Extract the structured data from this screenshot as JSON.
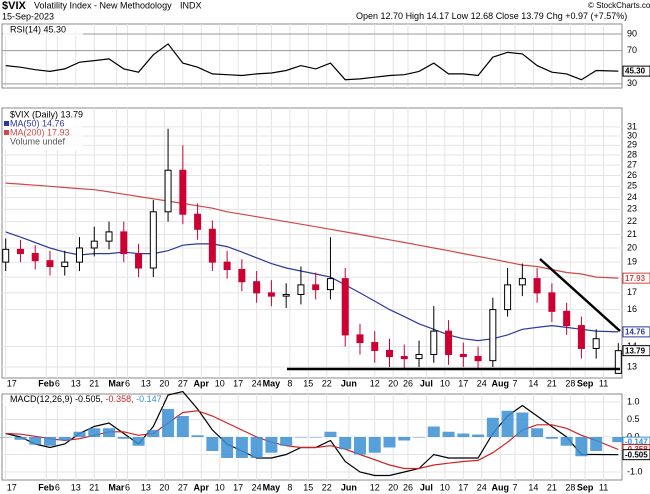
{
  "header": {
    "symbol": "$VIX",
    "name": "Volatility Index - New Methodology",
    "exchange": "INDX",
    "date": "15-Sep-2023",
    "quote": [
      "Open 12.70",
      "High 14.17",
      "Low 12.68",
      "Close 13.79",
      "Chg +0.97 (+7.57%)"
    ],
    "credit": "© StockCharts.com"
  },
  "chart_data": [
    {
      "type": "line",
      "label": "RSI(14) 45.30",
      "x": [
        0,
        4,
        8,
        12,
        16,
        20,
        24,
        28,
        32,
        36,
        40,
        44,
        48,
        52,
        56,
        60,
        64,
        68,
        72,
        76,
        80,
        84,
        88,
        92,
        96,
        100,
        104,
        108,
        112,
        116,
        120,
        124,
        128,
        132,
        136,
        140,
        144,
        148,
        152,
        156,
        160,
        166
      ],
      "xlim": [
        -1,
        167
      ],
      "series": [
        {
          "color": "#000000",
          "values": [
            52,
            50,
            47,
            45,
            48,
            56,
            58,
            60,
            48,
            44,
            65,
            78,
            55,
            50,
            42,
            41,
            40,
            42,
            43,
            46,
            52,
            48,
            55,
            35,
            36,
            38,
            40,
            41,
            45,
            55,
            42,
            42,
            40,
            62,
            68,
            66,
            52,
            44,
            42,
            35,
            46,
            45.3
          ]
        }
      ],
      "ylim": [
        25,
        102
      ],
      "yticks": [
        30,
        70,
        90
      ],
      "last_labels": [
        {
          "value": 45.3,
          "label": "45.30",
          "color": "#000000"
        }
      ]
    },
    {
      "type": "candlestick",
      "label": "$VIX (Daily) 13.79",
      "note": "Volume undef",
      "log_scale": true,
      "x": [
        0,
        4,
        8,
        12,
        16,
        20,
        24,
        28,
        32,
        36,
        40,
        44,
        48,
        52,
        56,
        60,
        64,
        68,
        72,
        76,
        80,
        84,
        88,
        92,
        96,
        100,
        104,
        108,
        112,
        116,
        120,
        124,
        128,
        132,
        136,
        140,
        144,
        148,
        152,
        156,
        160,
        166
      ],
      "xlim": [
        -1,
        167
      ],
      "open": [
        19.0,
        19.9,
        19.6,
        19.1,
        18.7,
        19.0,
        20.0,
        20.5,
        21.2,
        19.6,
        18.6,
        22.8,
        26.5,
        22.6,
        21.4,
        19.0,
        18.5,
        17.7,
        17.0,
        16.8,
        16.9,
        17.5,
        17.2,
        17.9,
        14.6,
        14.2,
        13.8,
        13.5,
        13.4,
        13.6,
        14.8,
        13.6,
        13.5,
        13.3,
        16.0,
        17.5,
        17.9,
        17.0,
        15.9,
        15.1,
        13.9,
        12.7
      ],
      "high": [
        20.7,
        20.6,
        20.2,
        19.8,
        19.8,
        20.8,
        21.6,
        22.0,
        22.0,
        20.3,
        23.8,
        30.8,
        29.0,
        23.5,
        22.1,
        19.8,
        19.2,
        18.4,
        17.8,
        17.6,
        18.7,
        18.3,
        20.8,
        18.6,
        15.2,
        14.8,
        14.4,
        14.1,
        14.3,
        16.2,
        15.4,
        14.2,
        14.0,
        16.7,
        18.6,
        18.9,
        18.6,
        17.6,
        16.4,
        15.6,
        14.9,
        14.17
      ],
      "low": [
        18.4,
        19.0,
        18.5,
        18.1,
        18.1,
        18.4,
        19.4,
        19.9,
        19.0,
        18.0,
        18.0,
        22.0,
        21.8,
        20.6,
        18.4,
        17.9,
        17.1,
        16.4,
        16.2,
        16.1,
        16.3,
        16.6,
        16.6,
        14.0,
        13.6,
        13.2,
        13.0,
        12.9,
        13.0,
        13.2,
        13.1,
        13.0,
        12.9,
        13.0,
        15.6,
        16.8,
        16.4,
        15.3,
        14.6,
        13.4,
        13.4,
        12.68
      ],
      "close": [
        19.9,
        19.6,
        19.1,
        18.7,
        19.0,
        20.0,
        20.5,
        21.2,
        19.6,
        18.6,
        22.8,
        26.5,
        22.6,
        21.4,
        19.0,
        18.5,
        17.7,
        17.0,
        16.8,
        16.9,
        17.5,
        17.2,
        17.9,
        14.6,
        14.2,
        13.8,
        13.5,
        13.4,
        13.6,
        14.8,
        13.6,
        13.5,
        13.3,
        16.0,
        17.5,
        17.9,
        17.0,
        15.9,
        15.1,
        13.9,
        14.4,
        13.79
      ],
      "up_color": "#000000",
      "down_color": "#cc0033",
      "series": [
        {
          "name": "MA(50) 14.76",
          "color": "#2b3a9a",
          "values": [
            21.2,
            20.8,
            20.4,
            20.0,
            19.7,
            19.5,
            19.6,
            19.6,
            19.7,
            19.6,
            19.6,
            19.8,
            20.2,
            20.3,
            20.3,
            20.1,
            19.7,
            19.3,
            18.9,
            18.6,
            18.4,
            18.2,
            18.0,
            17.5,
            17.0,
            16.5,
            16.0,
            15.6,
            15.2,
            14.9,
            14.6,
            14.4,
            14.3,
            14.4,
            14.6,
            14.9,
            15.0,
            15.1,
            15.0,
            14.9,
            14.8,
            14.76
          ]
        },
        {
          "name": "MA(200) 17.93",
          "color": "#d04848",
          "values": [
            25.3,
            25.2,
            25.1,
            25.0,
            24.9,
            24.8,
            24.7,
            24.5,
            24.3,
            24.1,
            23.9,
            23.7,
            23.5,
            23.3,
            23.1,
            22.8,
            22.6,
            22.4,
            22.2,
            22.0,
            21.8,
            21.6,
            21.4,
            21.2,
            21.0,
            20.8,
            20.6,
            20.4,
            20.2,
            20.0,
            19.8,
            19.6,
            19.4,
            19.2,
            19.0,
            18.8,
            18.7,
            18.5,
            18.3,
            18.2,
            18.0,
            17.93
          ]
        }
      ],
      "ylim": [
        12.49,
        33.2
      ],
      "yticks": [
        13,
        14,
        16,
        17,
        18,
        19,
        20,
        21,
        22,
        23,
        24,
        25,
        26,
        27,
        28,
        29,
        30,
        31
      ],
      "last_labels": [
        {
          "value": 17.93,
          "color": "#d04848"
        },
        {
          "value": 14.76,
          "color": "#2b3a9a"
        },
        {
          "value": 13.79,
          "color": "#000000"
        }
      ],
      "xticks": [
        {
          "value": 0,
          "label": "17"
        },
        {
          "value": 11,
          "label": "Feb"
        },
        {
          "value": 14,
          "label": "6"
        },
        {
          "value": 19,
          "label": "13"
        },
        {
          "value": 24,
          "label": "21"
        },
        {
          "value": 30,
          "label": "Mar"
        },
        {
          "value": 33,
          "label": "6"
        },
        {
          "value": 38,
          "label": "13"
        },
        {
          "value": 43,
          "label": "20"
        },
        {
          "value": 48,
          "label": "27"
        },
        {
          "value": 53,
          "label": "Apr"
        },
        {
          "value": 58,
          "label": "10"
        },
        {
          "value": 63,
          "label": "17"
        },
        {
          "value": 68,
          "label": "24"
        },
        {
          "value": 72,
          "label": "May"
        },
        {
          "value": 77,
          "label": "8"
        },
        {
          "value": 82,
          "label": "15"
        },
        {
          "value": 87,
          "label": "22"
        },
        {
          "value": 93,
          "label": "Jun"
        },
        {
          "value": 100,
          "label": "12"
        },
        {
          "value": 105,
          "label": "20"
        },
        {
          "value": 109,
          "label": "26"
        },
        {
          "value": 114,
          "label": "Jul"
        },
        {
          "value": 119,
          "label": "10"
        },
        {
          "value": 124,
          "label": "17"
        },
        {
          "value": 129,
          "label": "24"
        },
        {
          "value": 134,
          "label": "Aug"
        },
        {
          "value": 138,
          "label": "7"
        },
        {
          "value": 143,
          "label": "14"
        },
        {
          "value": 148,
          "label": "21"
        },
        {
          "value": 153,
          "label": "28"
        },
        {
          "value": 157,
          "label": "Sep"
        },
        {
          "value": 162,
          "label": "11"
        }
      ],
      "grid": true
    },
    {
      "type": "line",
      "x": [
        0,
        4,
        8,
        12,
        16,
        20,
        24,
        28,
        32,
        36,
        40,
        44,
        48,
        52,
        56,
        60,
        64,
        68,
        72,
        76,
        80,
        84,
        88,
        92,
        96,
        100,
        104,
        108,
        112,
        116,
        120,
        124,
        128,
        132,
        136,
        140,
        144,
        148,
        152,
        156,
        160,
        166
      ],
      "xlim": [
        -1,
        167
      ],
      "series": [
        {
          "name": "MACD(12,26,9) -0.505,",
          "color": "#000000",
          "values": [
            0.1,
            0.0,
            -0.2,
            -0.3,
            -0.2,
            0.1,
            0.3,
            0.4,
            0.1,
            -0.2,
            0.3,
            1.2,
            1.3,
            0.8,
            0.2,
            -0.2,
            -0.4,
            -0.6,
            -0.6,
            -0.5,
            -0.3,
            -0.3,
            -0.1,
            -0.7,
            -1.0,
            -1.1,
            -1.1,
            -1.0,
            -0.9,
            -0.5,
            -0.6,
            -0.6,
            -0.6,
            0.1,
            0.6,
            0.9,
            0.6,
            0.3,
            0.0,
            -0.5,
            -0.5,
            -0.505
          ]
        },
        {
          "name": "-0.358,",
          "color": "#d02020",
          "values": [
            0.1,
            0.08,
            0.02,
            -0.05,
            -0.1,
            -0.05,
            0.05,
            0.15,
            0.15,
            0.05,
            0.1,
            0.4,
            0.7,
            0.75,
            0.6,
            0.4,
            0.2,
            0.0,
            -0.15,
            -0.25,
            -0.3,
            -0.3,
            -0.25,
            -0.35,
            -0.5,
            -0.65,
            -0.8,
            -0.9,
            -0.9,
            -0.8,
            -0.75,
            -0.7,
            -0.67,
            -0.45,
            -0.15,
            0.2,
            0.35,
            0.35,
            0.25,
            0.05,
            -0.1,
            -0.358
          ]
        },
        {
          "name": "-0.147",
          "color": "#3b8fd4",
          "type": "bar",
          "values": [
            0,
            -0.08,
            -0.22,
            -0.25,
            -0.1,
            0.15,
            0.25,
            0.25,
            -0.05,
            -0.25,
            0.2,
            0.8,
            0.6,
            0.05,
            -0.4,
            -0.6,
            -0.6,
            -0.6,
            -0.45,
            -0.25,
            0,
            0,
            0.15,
            -0.35,
            -0.5,
            -0.45,
            -0.3,
            -0.1,
            0,
            0.3,
            0.15,
            0.1,
            0.07,
            0.55,
            0.75,
            0.7,
            0.25,
            -0.05,
            -0.25,
            -0.55,
            -0.4,
            -0.147
          ]
        }
      ],
      "ylim": [
        -1.23,
        1.23
      ],
      "yticks": [
        {
          "value": 1,
          "label": "1.0"
        },
        0.5,
        {
          "value": 0,
          "label": "0.0"
        },
        -0.5,
        {
          "value": -1,
          "label": "-1.0"
        }
      ],
      "last_labels": [
        {
          "value": -0.147,
          "color": "#3b8fd4"
        },
        {
          "value": -0.358,
          "color": "#d02020"
        },
        {
          "value": -0.505,
          "color": "#000000"
        }
      ]
    }
  ]
}
